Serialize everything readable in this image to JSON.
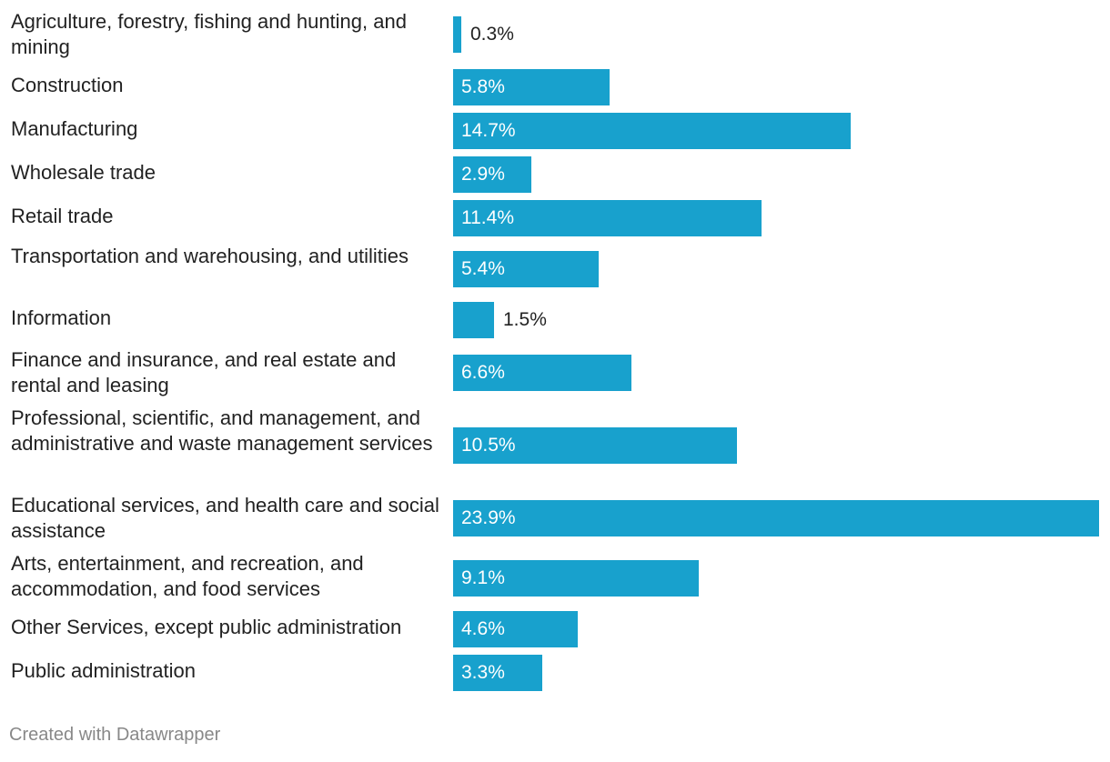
{
  "colors": {
    "bar": "#18a1cd",
    "text": "#222222",
    "footer": "#888888"
  },
  "chart_data": {
    "type": "bar",
    "orientation": "horizontal",
    "unit": "%",
    "categories": [
      "Agriculture, forestry, fishing and hunting, and mining",
      "Construction",
      "Manufacturing",
      "Wholesale trade",
      "Retail trade",
      "Transportation and warehousing, and utilities",
      "Information",
      "Finance and insurance, and real estate and rental and leasing",
      "Professional, scientific, and management, and administrative and waste management services",
      "Educational services, and health care and social assistance",
      "Arts, entertainment, and recreation, and accommodation, and food services",
      "Other Services, except public administration",
      "Public administration"
    ],
    "values": [
      0.3,
      5.8,
      14.7,
      2.9,
      11.4,
      5.4,
      1.5,
      6.6,
      10.5,
      23.9,
      9.1,
      4.6,
      3.3
    ],
    "value_labels": [
      "0.3%",
      "5.8%",
      "14.7%",
      "2.9%",
      "11.4%",
      "5.4%",
      "1.5%",
      "6.6%",
      "10.5%",
      "23.9%",
      "9.1%",
      "4.6%",
      "3.3%"
    ],
    "xlim": [
      0,
      23.9
    ]
  },
  "footer": {
    "credit": "Created with Datawrapper"
  }
}
